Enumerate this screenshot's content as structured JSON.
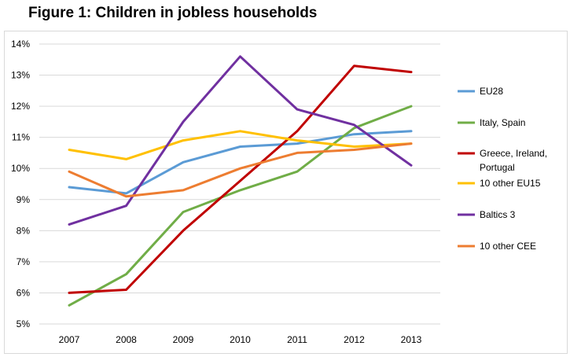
{
  "title": "Figure 1: Children in jobless households",
  "chart_data": {
    "type": "line",
    "title": "Figure 1: Children in jobless households",
    "xlabel": "",
    "ylabel": "",
    "x": [
      "2007",
      "2008",
      "2009",
      "2010",
      "2011",
      "2012",
      "2013"
    ],
    "ylim": [
      5,
      14
    ],
    "yticks": [
      "5%",
      "6%",
      "7%",
      "8%",
      "9%",
      "10%",
      "11%",
      "12%",
      "13%",
      "14%"
    ],
    "grid": "horizontal",
    "legend_position": "right",
    "series": [
      {
        "name": "EU28",
        "color": "#5b9bd5",
        "values": [
          9.4,
          9.2,
          10.2,
          10.7,
          10.8,
          11.1,
          11.2
        ]
      },
      {
        "name": "Italy, Spain",
        "color": "#70ad47",
        "values": [
          5.6,
          6.6,
          8.6,
          9.3,
          9.9,
          11.3,
          12.0
        ]
      },
      {
        "name": "Greece, Ireland, Portugal",
        "legend_lines": [
          "Greece, Ireland,",
          "Portugal"
        ],
        "color": "#c00000",
        "values": [
          6.0,
          6.1,
          8.0,
          9.6,
          11.2,
          13.3,
          13.1
        ]
      },
      {
        "name": "10 other EU15",
        "color": "#ffc000",
        "values": [
          10.6,
          10.3,
          10.9,
          11.2,
          10.9,
          10.7,
          10.8
        ]
      },
      {
        "name": "Baltics 3",
        "color": "#7030a0",
        "values": [
          8.2,
          8.8,
          11.5,
          13.6,
          11.9,
          11.4,
          10.1
        ]
      },
      {
        "name": "10 other CEE",
        "color": "#ed7d31",
        "values": [
          9.9,
          9.1,
          9.3,
          10.0,
          10.5,
          10.6,
          10.8
        ]
      }
    ]
  }
}
